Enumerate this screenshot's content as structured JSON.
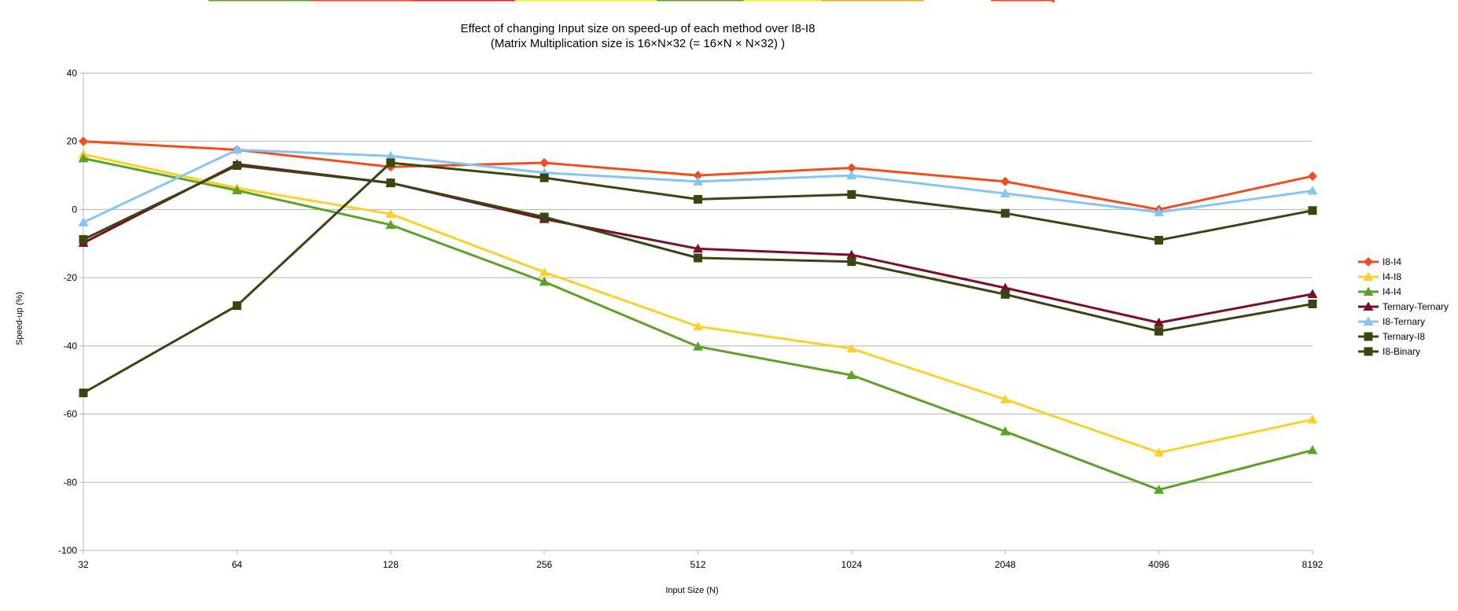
{
  "chart_data": {
    "type": "line",
    "title": "Effect of changing Input size on speed-up of each method over I8-I8",
    "subtitle": "(Matrix Multiplication size is 16×N×32 (= 16×N × N×32) )",
    "xlabel": "Input Size (N)",
    "ylabel": "Speed-up (%)",
    "categories": [
      "32",
      "64",
      "128",
      "256",
      "512",
      "1024",
      "2048",
      "4096",
      "8192"
    ],
    "ylim": [
      -100,
      40
    ],
    "yticks": [
      40,
      20,
      0,
      -20,
      -40,
      -60,
      -80,
      -100
    ],
    "grid": true,
    "legend_position": "right",
    "series": [
      {
        "name": "I8-I4",
        "color": "#f04e1e",
        "marker": "diamond",
        "values": [
          20,
          17.5,
          12.5,
          13.7,
          10,
          12.2,
          8.2,
          0,
          9.8
        ]
      },
      {
        "name": "I4-I8",
        "color": "#fbd02a",
        "marker": "triangle",
        "values": [
          16.2,
          6.3,
          -1.3,
          -18.4,
          -34.3,
          -40.8,
          -55.7,
          -71.3,
          -61.6
        ]
      },
      {
        "name": "I4-I4",
        "color": "#5ca226",
        "marker": "triangle",
        "values": [
          15,
          5.6,
          -4.5,
          -21.2,
          -40.2,
          -48.6,
          -65.1,
          -82.2,
          -70.6
        ]
      },
      {
        "name": "Ternary-Ternary",
        "color": "#7b0e27",
        "marker": "triangle",
        "values": [
          -9.8,
          13.3,
          7.8,
          -2.8,
          -11.5,
          -13.3,
          -23,
          -33.2,
          -24.8
        ]
      },
      {
        "name": "I8-Ternary",
        "color": "#85c5f6",
        "marker": "triangle",
        "values": [
          -3.8,
          17.5,
          15.7,
          10.8,
          8.2,
          10,
          4.7,
          -0.8,
          5.5
        ]
      },
      {
        "name": "Ternary-I8",
        "color": "#3b4510",
        "marker": "square",
        "values": [
          -8.8,
          12.9,
          7.8,
          -2.2,
          -14.2,
          -15.3,
          -24.9,
          -35.7,
          -27.7
        ]
      },
      {
        "name": "I8-Binary",
        "color": "#3b4510",
        "marker": "square",
        "values": [
          -53.8,
          -28.2,
          13.7,
          9.3,
          3,
          4.4,
          -1.1,
          -9,
          -0.3
        ]
      }
    ]
  }
}
